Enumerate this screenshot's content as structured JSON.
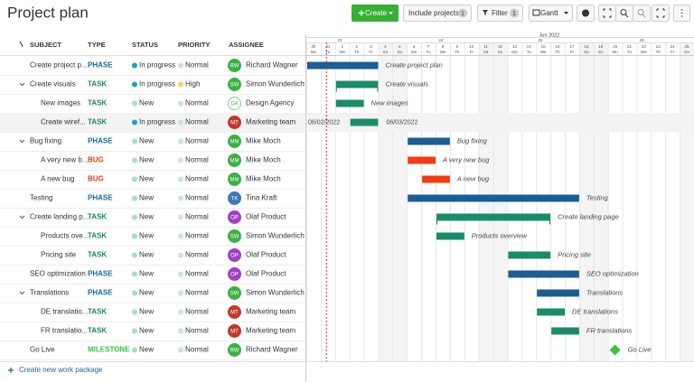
{
  "header": {
    "title": "Project plan",
    "create": "Create",
    "include_projects": "Include projects",
    "include_count": 1,
    "filter": "Filter",
    "filter_count": 1,
    "view": "Gantt"
  },
  "table": {
    "columns": [
      "SUBJECT",
      "TYPE",
      "STATUS",
      "PRIORITY",
      "ASSIGNEE"
    ],
    "rows": [
      [
        "Create project p...",
        "PHASE",
        "In progress",
        "Normal",
        "RW",
        "Richard Wagner"
      ],
      [
        "Create visuals",
        "TASK",
        "In progress",
        "High",
        "SW",
        "Simon Wunderlich"
      ],
      [
        "New images",
        "TASK",
        "New",
        "Normal",
        "DA",
        "Design Agency"
      ],
      [
        "Create wiref...",
        "TASK",
        "In progress",
        "Normal",
        "MT",
        "Marketing team"
      ],
      [
        "Bug fixing",
        "PHASE",
        "New",
        "Normal",
        "MM",
        "Mike Moch"
      ],
      [
        "A very new b...",
        "BUG",
        "New",
        "Normal",
        "MM",
        "Mike Moch"
      ],
      [
        "A new bug",
        "BUG",
        "New",
        "Normal",
        "MM",
        "Mike Moch"
      ],
      [
        "Testing",
        "PHASE",
        "New",
        "Normal",
        "TK",
        "Tina Kraft"
      ],
      [
        "Create landing p...",
        "TASK",
        "New",
        "Normal",
        "OP",
        "Olaf Product"
      ],
      [
        "Products ove...",
        "TASK",
        "New",
        "Normal",
        "SW",
        "Simon Wunderlich"
      ],
      [
        "Pricing site",
        "TASK",
        "New",
        "Normal",
        "OP",
        "Olaf Product"
      ],
      [
        "SEO optimization",
        "PHASE",
        "New",
        "Normal",
        "OP",
        "Olaf Product"
      ],
      [
        "Translations",
        "PHASE",
        "New",
        "Normal",
        "SW",
        "Simon Wunderlich"
      ],
      [
        "DE translatio...",
        "TASK",
        "New",
        "Normal",
        "MT",
        "Marketing team"
      ],
      [
        "FR translatio...",
        "TASK",
        "New",
        "Normal",
        "MT",
        "Marketing team"
      ],
      [
        "Go Live",
        "MILESTONE",
        "New",
        "Normal",
        "RW",
        "Richard Wagner"
      ]
    ],
    "create_link": "Create new work package"
  },
  "gantt": {
    "month": "Jun 2022",
    "weeks": [
      23,
      24,
      25,
      26
    ],
    "days": [
      30,
      31,
      1,
      2,
      3,
      4,
      5,
      6,
      7,
      8,
      9,
      10,
      11,
      12,
      13,
      14,
      15,
      16,
      17,
      18,
      19,
      20,
      21,
      22,
      23,
      24,
      25
    ],
    "weekdays": [
      "Mo",
      "Tu",
      "We",
      "Th",
      "Fr",
      "Sa",
      "Su",
      "Mo",
      "Tu",
      "We",
      "Th",
      "Fr",
      "Sa",
      "Su",
      "Mo",
      "Tu",
      "We",
      "Th",
      "Fr",
      "Sa",
      "Su",
      "Mo",
      "Tu",
      "We",
      "Th",
      "Fr",
      "Sa"
    ],
    "labels": [
      "Create project plan",
      "Create visuals",
      "New images",
      null,
      "Bug fixing",
      "A very new bug",
      "A new bug",
      "Testing",
      "Create landing page",
      "Products overview",
      "Pricing site",
      "SEO optimization",
      "Translations",
      "DE translations",
      "FR translations",
      "Go Live"
    ],
    "date_start": "06/02/2022",
    "date_end": "06/03/2022"
  }
}
